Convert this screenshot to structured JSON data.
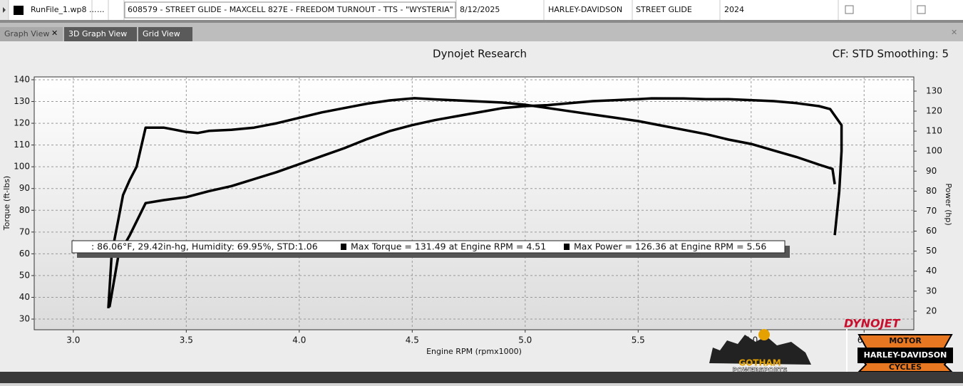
{
  "file_row": {
    "file": "RunFile_1.wp8 ...",
    "more": "...",
    "description": "608579 - STREET GLIDE - MAXCELL 827E - FREEDOM TURNOUT - TTS - \"WYSTERIA\"",
    "date": "8/12/2025",
    "make": "HARLEY-DAVIDSON",
    "model": "STREET GLIDE",
    "year": "2024"
  },
  "tabs": [
    "Graph View",
    "3D Graph View",
    "Grid View"
  ],
  "chart_data": {
    "type": "line",
    "title": "Dynojet Research",
    "subtitle": "CF: STD Smoothing: 5",
    "x_label": "Engine RPM (rpmx1000)",
    "y_label": "Torque (ft-lbs)",
    "y2_label": "Power (hp)",
    "annotations": [
      ": 86.06°F, 29.42in-hg, Humidity: 69.95%, STD:1.06",
      "Max Torque = 131.49 at Engine RPM = 4.51",
      "Max Power = 126.36 at Engine RPM = 5.56"
    ],
    "xlim": [
      2.827,
      6.72
    ],
    "xticks": [
      {
        "value": 3,
        "label": "3.0"
      },
      3.5,
      {
        "value": 4,
        "label": "4.0"
      },
      4.5,
      {
        "value": 5,
        "label": "5.0"
      },
      5.5,
      {
        "value": 6,
        "label": "6.0"
      },
      6.5
    ],
    "ylim": [
      25.1,
      141.3
    ],
    "yticks": [
      30,
      40,
      50,
      60,
      70,
      80,
      90,
      100,
      110,
      120,
      130,
      140
    ],
    "y2lim": [
      10.7,
      137.1
    ],
    "y2ticks": [
      20,
      30,
      40,
      50,
      60,
      70,
      80,
      90,
      100,
      110,
      120,
      130
    ],
    "grid": true,
    "series": [
      {
        "color": "#000000",
        "x": [
          3.155,
          3.17,
          3.2,
          3.22,
          3.25,
          3.28,
          3.32,
          3.4,
          3.45,
          3.5,
          3.55,
          3.6,
          3.7,
          3.8,
          3.9,
          4.0,
          4.1,
          4.2,
          4.3,
          4.4,
          4.51,
          4.6,
          4.7,
          4.8,
          4.9,
          5.0,
          5.1,
          5.2,
          5.3,
          5.4,
          5.5,
          5.6,
          5.7,
          5.8,
          5.9,
          6.0,
          6.1,
          6.2,
          6.3,
          6.36,
          6.37
        ],
        "values": [
          35,
          60,
          76,
          87,
          94,
          100,
          118,
          118,
          117,
          116,
          115.5,
          116.5,
          117,
          118,
          120,
          122.5,
          125,
          127,
          129,
          130.5,
          131.5,
          131,
          130.5,
          130,
          129.5,
          128.5,
          127,
          125.5,
          124,
          122.5,
          121,
          119,
          117,
          115,
          112.5,
          110.5,
          107.5,
          104.5,
          101,
          99,
          92
        ]
      },
      {
        "color": "#000000",
        "axis": "y2",
        "x": [
          3.16,
          3.2,
          3.25,
          3.32,
          3.4,
          3.5,
          3.6,
          3.7,
          3.8,
          3.9,
          4.0,
          4.1,
          4.2,
          4.3,
          4.4,
          4.5,
          4.6,
          4.7,
          4.8,
          4.9,
          5.0,
          5.1,
          5.2,
          5.3,
          5.4,
          5.5,
          5.56,
          5.7,
          5.8,
          5.9,
          6.0,
          6.1,
          6.2,
          6.3,
          6.35,
          6.4,
          6.4,
          6.39,
          6.37
        ],
        "values": [
          22,
          48,
          58,
          74,
          75.5,
          77,
          80,
          82.5,
          86,
          89.5,
          93.5,
          97.5,
          101.5,
          106,
          110,
          113,
          115.5,
          117.5,
          119.5,
          121.5,
          122.5,
          123,
          124,
          125,
          125.5,
          126,
          126.4,
          126.3,
          126,
          126,
          125.5,
          125,
          124,
          122.5,
          121,
          113,
          100,
          80,
          58
        ]
      }
    ]
  },
  "logos": {
    "dynojet": "DYNOJET",
    "shop": "GOTHAM",
    "shop_sub": "POWERSPORTS",
    "hd_top": "MOTOR",
    "hd_main": "HARLEY-DAVIDSON",
    "hd_bottom": "CYCLES"
  }
}
